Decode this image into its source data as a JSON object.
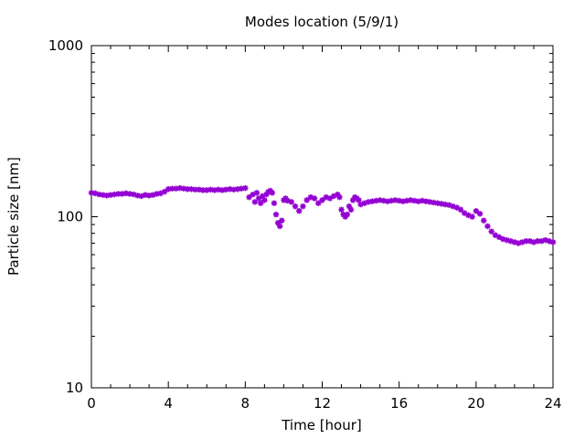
{
  "chart_data": {
    "type": "scatter",
    "title": "Modes location (5/9/1)",
    "xlabel": "Time [hour]",
    "ylabel": "Particle size [nm]",
    "xlim": [
      0,
      24
    ],
    "ylim": [
      10,
      1000
    ],
    "yscale": "log",
    "grid": false,
    "x_ticks": [
      0,
      4,
      8,
      12,
      16,
      20,
      24
    ],
    "y_ticks": [
      10,
      100,
      1000
    ],
    "marker_color": "#9400d3",
    "marker_shape": "star",
    "series": [
      {
        "x": [
          0.0,
          0.2,
          0.4,
          0.6,
          0.8,
          1.0,
          1.2,
          1.4,
          1.6,
          1.8,
          2.0,
          2.2,
          2.4,
          2.6,
          2.8,
          3.0,
          3.2,
          3.4,
          3.6,
          3.8,
          4.0,
          4.2,
          4.4,
          4.6,
          4.8,
          5.0,
          5.2,
          5.4,
          5.6,
          5.8,
          6.0,
          6.2,
          6.4,
          6.6,
          6.8,
          7.0,
          7.2,
          7.4,
          7.6,
          7.8,
          8.0,
          8.2,
          8.4,
          8.5,
          8.6,
          8.7,
          8.8,
          8.9,
          9.0,
          9.1,
          9.2,
          9.3,
          9.4,
          9.5,
          9.6,
          9.7,
          9.8,
          9.9,
          10.0,
          10.1,
          10.2,
          10.4,
          10.6,
          10.8,
          11.0,
          11.2,
          11.4,
          11.6,
          11.8,
          12.0,
          12.2,
          12.4,
          12.6,
          12.8,
          12.9,
          13.0,
          13.1,
          13.2,
          13.3,
          13.4,
          13.5,
          13.6,
          13.7,
          13.8,
          13.9,
          14.0,
          14.2,
          14.4,
          14.6,
          14.8,
          15.0,
          15.2,
          15.4,
          15.6,
          15.8,
          16.0,
          16.2,
          16.4,
          16.6,
          16.8,
          17.0,
          17.2,
          17.4,
          17.6,
          17.8,
          18.0,
          18.2,
          18.4,
          18.6,
          18.8,
          19.0,
          19.2,
          19.4,
          19.6,
          19.8,
          20.0,
          20.2,
          20.4,
          20.6,
          20.8,
          21.0,
          21.2,
          21.4,
          21.6,
          21.8,
          22.0,
          22.2,
          22.4,
          22.6,
          22.8,
          23.0,
          23.2,
          23.4,
          23.6,
          23.8,
          24.0
        ],
        "y": [
          138,
          137,
          135,
          134,
          133,
          134,
          135,
          136,
          136,
          137,
          136,
          135,
          133,
          132,
          134,
          133,
          134,
          136,
          137,
          140,
          145,
          146,
          146,
          147,
          146,
          145,
          145,
          144,
          144,
          143,
          143,
          144,
          143,
          144,
          143,
          144,
          145,
          144,
          145,
          146,
          147,
          130,
          135,
          122,
          138,
          128,
          120,
          132,
          125,
          135,
          140,
          142,
          138,
          120,
          103,
          92,
          88,
          95,
          125,
          128,
          124,
          122,
          115,
          108,
          115,
          125,
          130,
          128,
          120,
          125,
          130,
          128,
          132,
          135,
          130,
          110,
          103,
          100,
          103,
          115,
          110,
          125,
          130,
          128,
          125,
          118,
          120,
          122,
          123,
          124,
          125,
          124,
          123,
          124,
          125,
          124,
          123,
          124,
          125,
          124,
          123,
          124,
          123,
          122,
          121,
          120,
          119,
          118,
          117,
          115,
          113,
          110,
          105,
          102,
          100,
          108,
          104,
          95,
          88,
          82,
          78,
          76,
          74,
          73,
          72,
          71,
          70,
          71,
          72,
          72,
          71,
          72,
          72,
          73,
          72,
          71
        ]
      }
    ]
  }
}
